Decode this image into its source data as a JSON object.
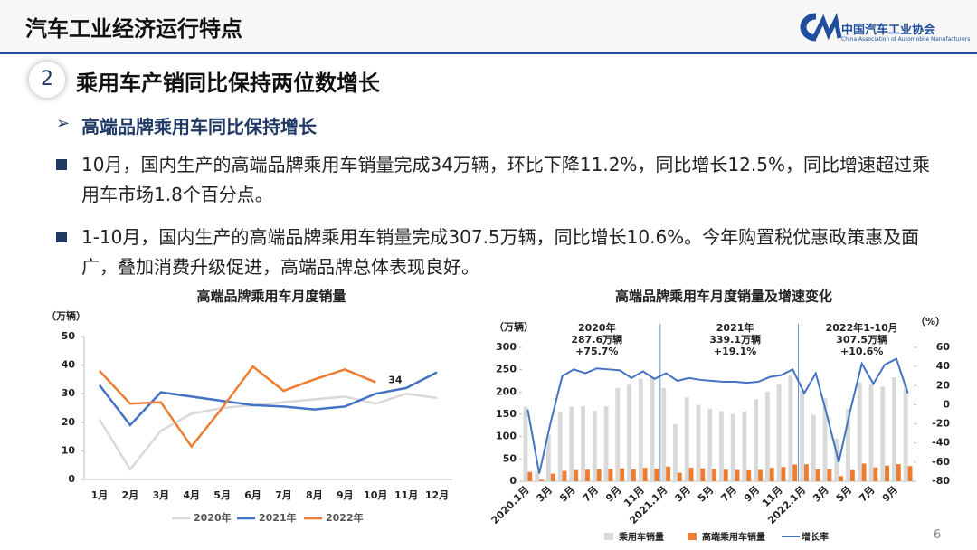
{
  "header": {
    "title": "汽车工业经济运行特点",
    "logo_cn": "中国汽车工业协会",
    "logo_en": "China Association of Automobile Manufacturers"
  },
  "section": {
    "number": "2",
    "title": "乘用车产销同比保持两位数增长"
  },
  "bullet": "高端品牌乘用车同比保持增长",
  "paragraphs": [
    "10月，国内生产的高端品牌乘用车销量完成34万辆，环比下降11.2%，同比增长12.5%，同比增速超过乘用车市场1.8个百分点。",
    "1-10月，国内生产的高端品牌乘用车销量完成307.5万辆，同比增长10.6%。今年购置税优惠政策惠及面广，叠加消费升级促进，高端品牌总体表现良好。"
  ],
  "page_number": "6",
  "chart_data": [
    {
      "type": "line",
      "title": "高端品牌乘用车月度销量",
      "y_label": "（万辆）",
      "categories": [
        "1月",
        "2月",
        "3月",
        "4月",
        "5月",
        "6月",
        "7月",
        "8月",
        "9月",
        "10月",
        "11月",
        "12月"
      ],
      "series": [
        {
          "name": "2020年",
          "color": "#d9d9d9",
          "values": [
            21,
            3.5,
            17,
            23,
            25,
            26,
            27,
            28,
            29,
            26.5,
            30,
            28.5
          ]
        },
        {
          "name": "2021年",
          "color": "#4472c4",
          "values": [
            33,
            19,
            30.5,
            29,
            27.5,
            26,
            25.5,
            24.5,
            25.5,
            30,
            32,
            37.5
          ]
        },
        {
          "name": "2022年",
          "color": "#ed7d31",
          "values": [
            38,
            26.5,
            27,
            11.5,
            25,
            39.5,
            31,
            35,
            38.5,
            34,
            null,
            null
          ]
        }
      ],
      "annotations": [
        "34"
      ],
      "ylim": [
        0,
        50
      ],
      "yticks": [
        0,
        10,
        20,
        30,
        40,
        50
      ],
      "grid": false
    },
    {
      "type": "combo",
      "title": "高端品牌乘用车月度销量及增速变化",
      "y_label": "（万辆）",
      "y2_label": "（%）",
      "categories": [
        "2020.1月",
        null,
        "3月",
        null,
        "5月",
        null,
        "7月",
        null,
        "9月",
        null,
        "11月",
        null,
        "2021.1月",
        null,
        "3月",
        null,
        "5月",
        null,
        "7月",
        null,
        "9月",
        null,
        "11月",
        null,
        "2022.1月",
        null,
        "3月",
        null,
        "5月",
        null,
        "7月",
        null,
        "9月",
        null
      ],
      "series": [
        {
          "name": "乘用车销量",
          "type": "bar",
          "color": "#d9d9d9",
          "values": [
            167,
            22,
            104,
            155,
            167,
            168,
            158,
            168,
            209,
            218,
            230,
            234,
            209,
            128,
            188,
            171,
            163,
            157,
            151,
            156,
            184,
            201,
            218,
            237,
            203,
            149,
            186,
            96,
            162,
            222,
            218,
            212,
            233,
            216
          ]
        },
        {
          "name": "高端乘用车销量",
          "type": "bar",
          "color": "#ed7d31",
          "values": [
            21,
            3.5,
            17,
            23,
            25,
            26,
            27,
            28,
            29,
            26.5,
            30,
            28.5,
            33,
            19,
            30.5,
            29,
            27.5,
            26,
            25.5,
            24.5,
            25.5,
            30,
            32,
            37.5,
            38,
            26.5,
            27,
            11.5,
            25,
            39.5,
            31,
            35,
            38.5,
            34
          ]
        },
        {
          "name": "增长率",
          "type": "line",
          "axis": "y2",
          "color": "#4472c4",
          "values": [
            -5,
            -72,
            -18,
            30,
            37,
            33,
            38,
            37,
            36,
            28,
            35,
            27,
            33,
            25,
            28,
            26,
            25,
            24,
            24,
            23,
            24,
            29,
            31,
            37,
            12,
            33,
            -12,
            -60,
            -6,
            43,
            22,
            42,
            48,
            12
          ]
        }
      ],
      "annotations": [
        [
          "2020年",
          "287.6万辆",
          "+75.7%"
        ],
        [
          "2021年",
          "339.1万辆",
          "+19.1%"
        ],
        [
          "2022年1-10月",
          "307.5万辆",
          "+10.6%"
        ]
      ],
      "ylim": [
        0,
        300
      ],
      "yticks": [
        0,
        50,
        100,
        150,
        200,
        250,
        300
      ],
      "y2lim": [
        -80,
        60
      ],
      "y2ticks": [
        -80,
        -60,
        -40,
        -20,
        0,
        20,
        40,
        60
      ],
      "grid": false
    }
  ]
}
